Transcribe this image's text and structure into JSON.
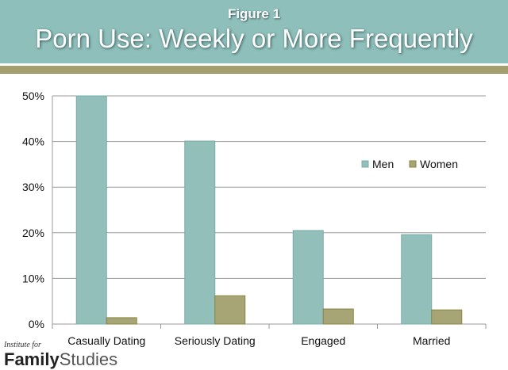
{
  "header": {
    "figure_label": "Figure 1",
    "title": "Porn Use: Weekly or More Frequently"
  },
  "logo": {
    "line1": "Institute for",
    "bold": "Family",
    "light": "Studies"
  },
  "colors": {
    "men": "#93bfbb",
    "women": "#a7a576",
    "header": "#8fbfbb",
    "band": "#a39f6f"
  },
  "chart_data": {
    "type": "bar",
    "title": "Porn Use: Weekly or More Frequently",
    "categories": [
      "Casually Dating",
      "Seriously Dating",
      "Engaged",
      "Married"
    ],
    "series": [
      {
        "name": "Men",
        "values": [
          50.0,
          40.1,
          20.5,
          19.6
        ]
      },
      {
        "name": "Women",
        "values": [
          1.4,
          6.2,
          3.3,
          3.1
        ]
      }
    ],
    "ylim": [
      0,
      50
    ],
    "yticks": [
      "0%",
      "10%",
      "20%",
      "30%",
      "40%",
      "50%"
    ],
    "grid": true,
    "legend": "right"
  }
}
